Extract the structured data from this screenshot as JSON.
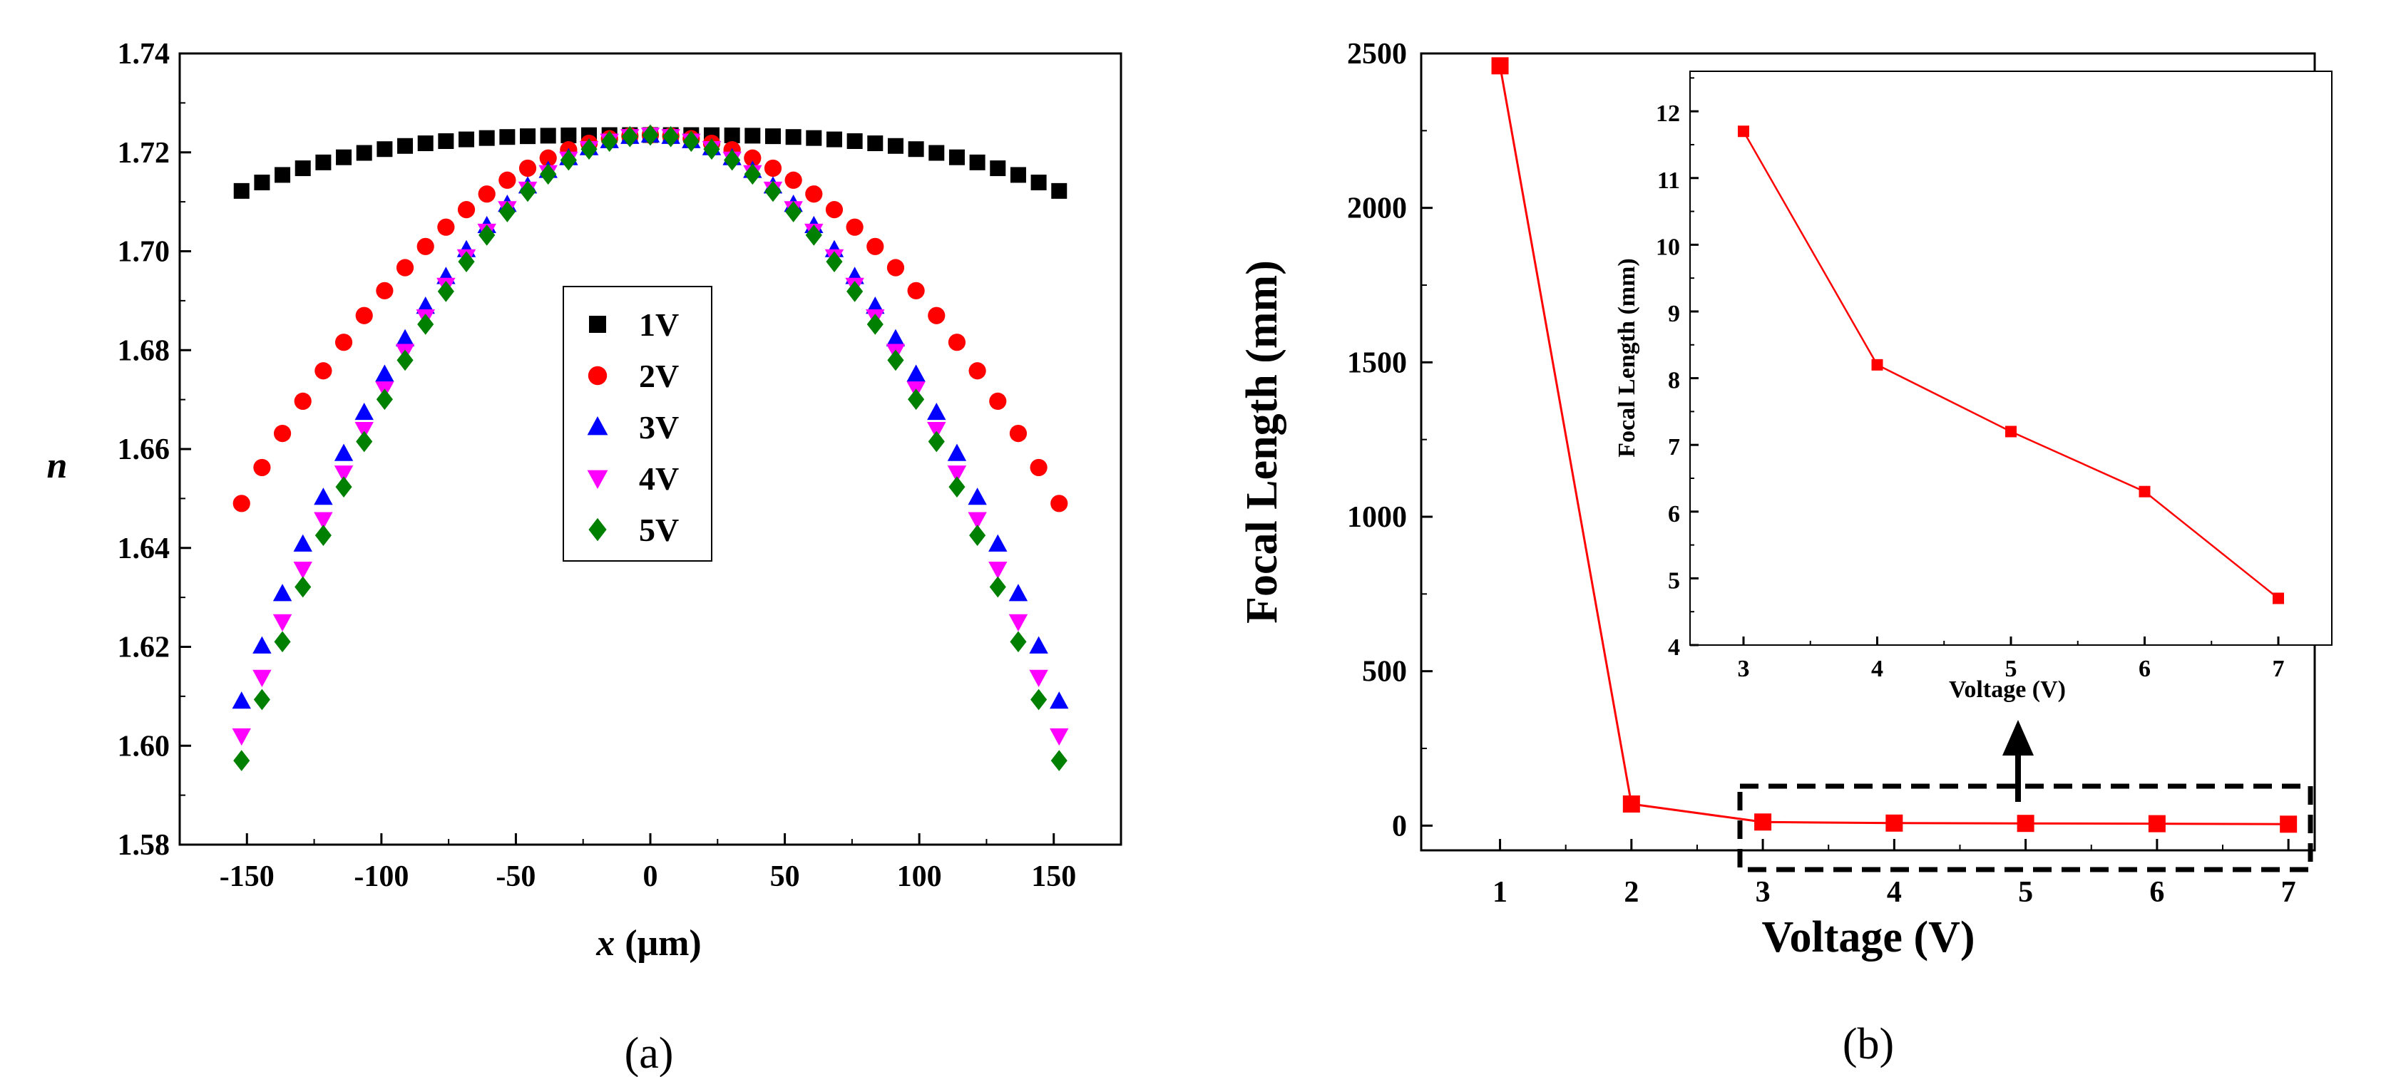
{
  "chart_data": [
    {
      "panel": "(a)",
      "type": "scatter",
      "title": "",
      "xlabel_var": "x",
      "xlabel_unit": "(μm)",
      "ylabel": "n",
      "xlim": [
        -175,
        175
      ],
      "ylim": [
        1.58,
        1.74
      ],
      "xticks": [
        -150,
        -100,
        -50,
        0,
        50,
        100,
        150
      ],
      "yticks": [
        "1.58",
        "1.60",
        "1.62",
        "1.64",
        "1.66",
        "1.68",
        "1.70",
        "1.72",
        "1.74"
      ],
      "grid": false,
      "legend_position": "center",
      "series": [
        {
          "name": "1V",
          "marker": "square",
          "color": "#000000",
          "edge": 1.7122
        },
        {
          "name": "2V",
          "marker": "circle",
          "color": "#ff0000",
          "edge": 1.649
        },
        {
          "name": "3V",
          "marker": "triangle-up",
          "color": "#0000ff",
          "edge": 1.609
        },
        {
          "name": "4V",
          "marker": "triangle-down",
          "color": "#ff00ff",
          "edge": 1.602
        },
        {
          "name": "5V",
          "marker": "diamond",
          "color": "#008000",
          "edge": 1.597
        }
      ],
      "peak": 1.7235,
      "x_range": [
        -152,
        152
      ],
      "points_per_series": 41
    },
    {
      "panel": "(b)",
      "type": "line",
      "title": "",
      "xlabel": "Voltage (V)",
      "ylabel": "Focal Length (mm)",
      "x": [
        1,
        2,
        3,
        4,
        5,
        6,
        7
      ],
      "series": [
        {
          "name": "Focal Length",
          "color": "#ff0000",
          "values": [
            2460,
            70,
            11.7,
            8.2,
            7.2,
            6.3,
            4.7
          ]
        }
      ],
      "xlim": [
        0.4,
        7.2
      ],
      "ylim": [
        -80,
        2500
      ],
      "xticks": [
        "1",
        "2",
        "3",
        "4",
        "5",
        "6",
        "7"
      ],
      "yticks": [
        "0",
        "500",
        "1000",
        "1500",
        "2000",
        "2500"
      ],
      "grid": false,
      "annotation": "dashed box around voltages 3–7 with arrow pointing up to inset"
    },
    {
      "panel": "(b) inset",
      "type": "line",
      "xlabel": "Voltage (V)",
      "ylabel": "Focal Length (mm)",
      "x": [
        3,
        4,
        5,
        6,
        7
      ],
      "series": [
        {
          "name": "Focal Length",
          "color": "#ff0000",
          "values": [
            11.7,
            8.2,
            7.2,
            6.3,
            4.7
          ]
        }
      ],
      "xlim": [
        2.6,
        7.4
      ],
      "ylim": [
        4,
        12.6
      ],
      "xticks": [
        "3",
        "4",
        "5",
        "6",
        "7"
      ],
      "yticks": [
        "4",
        "5",
        "6",
        "7",
        "8",
        "9",
        "10",
        "11",
        "12"
      ],
      "grid": false
    }
  ],
  "legend_title": "",
  "captions": {
    "a": "(a)",
    "b": "(b)"
  }
}
